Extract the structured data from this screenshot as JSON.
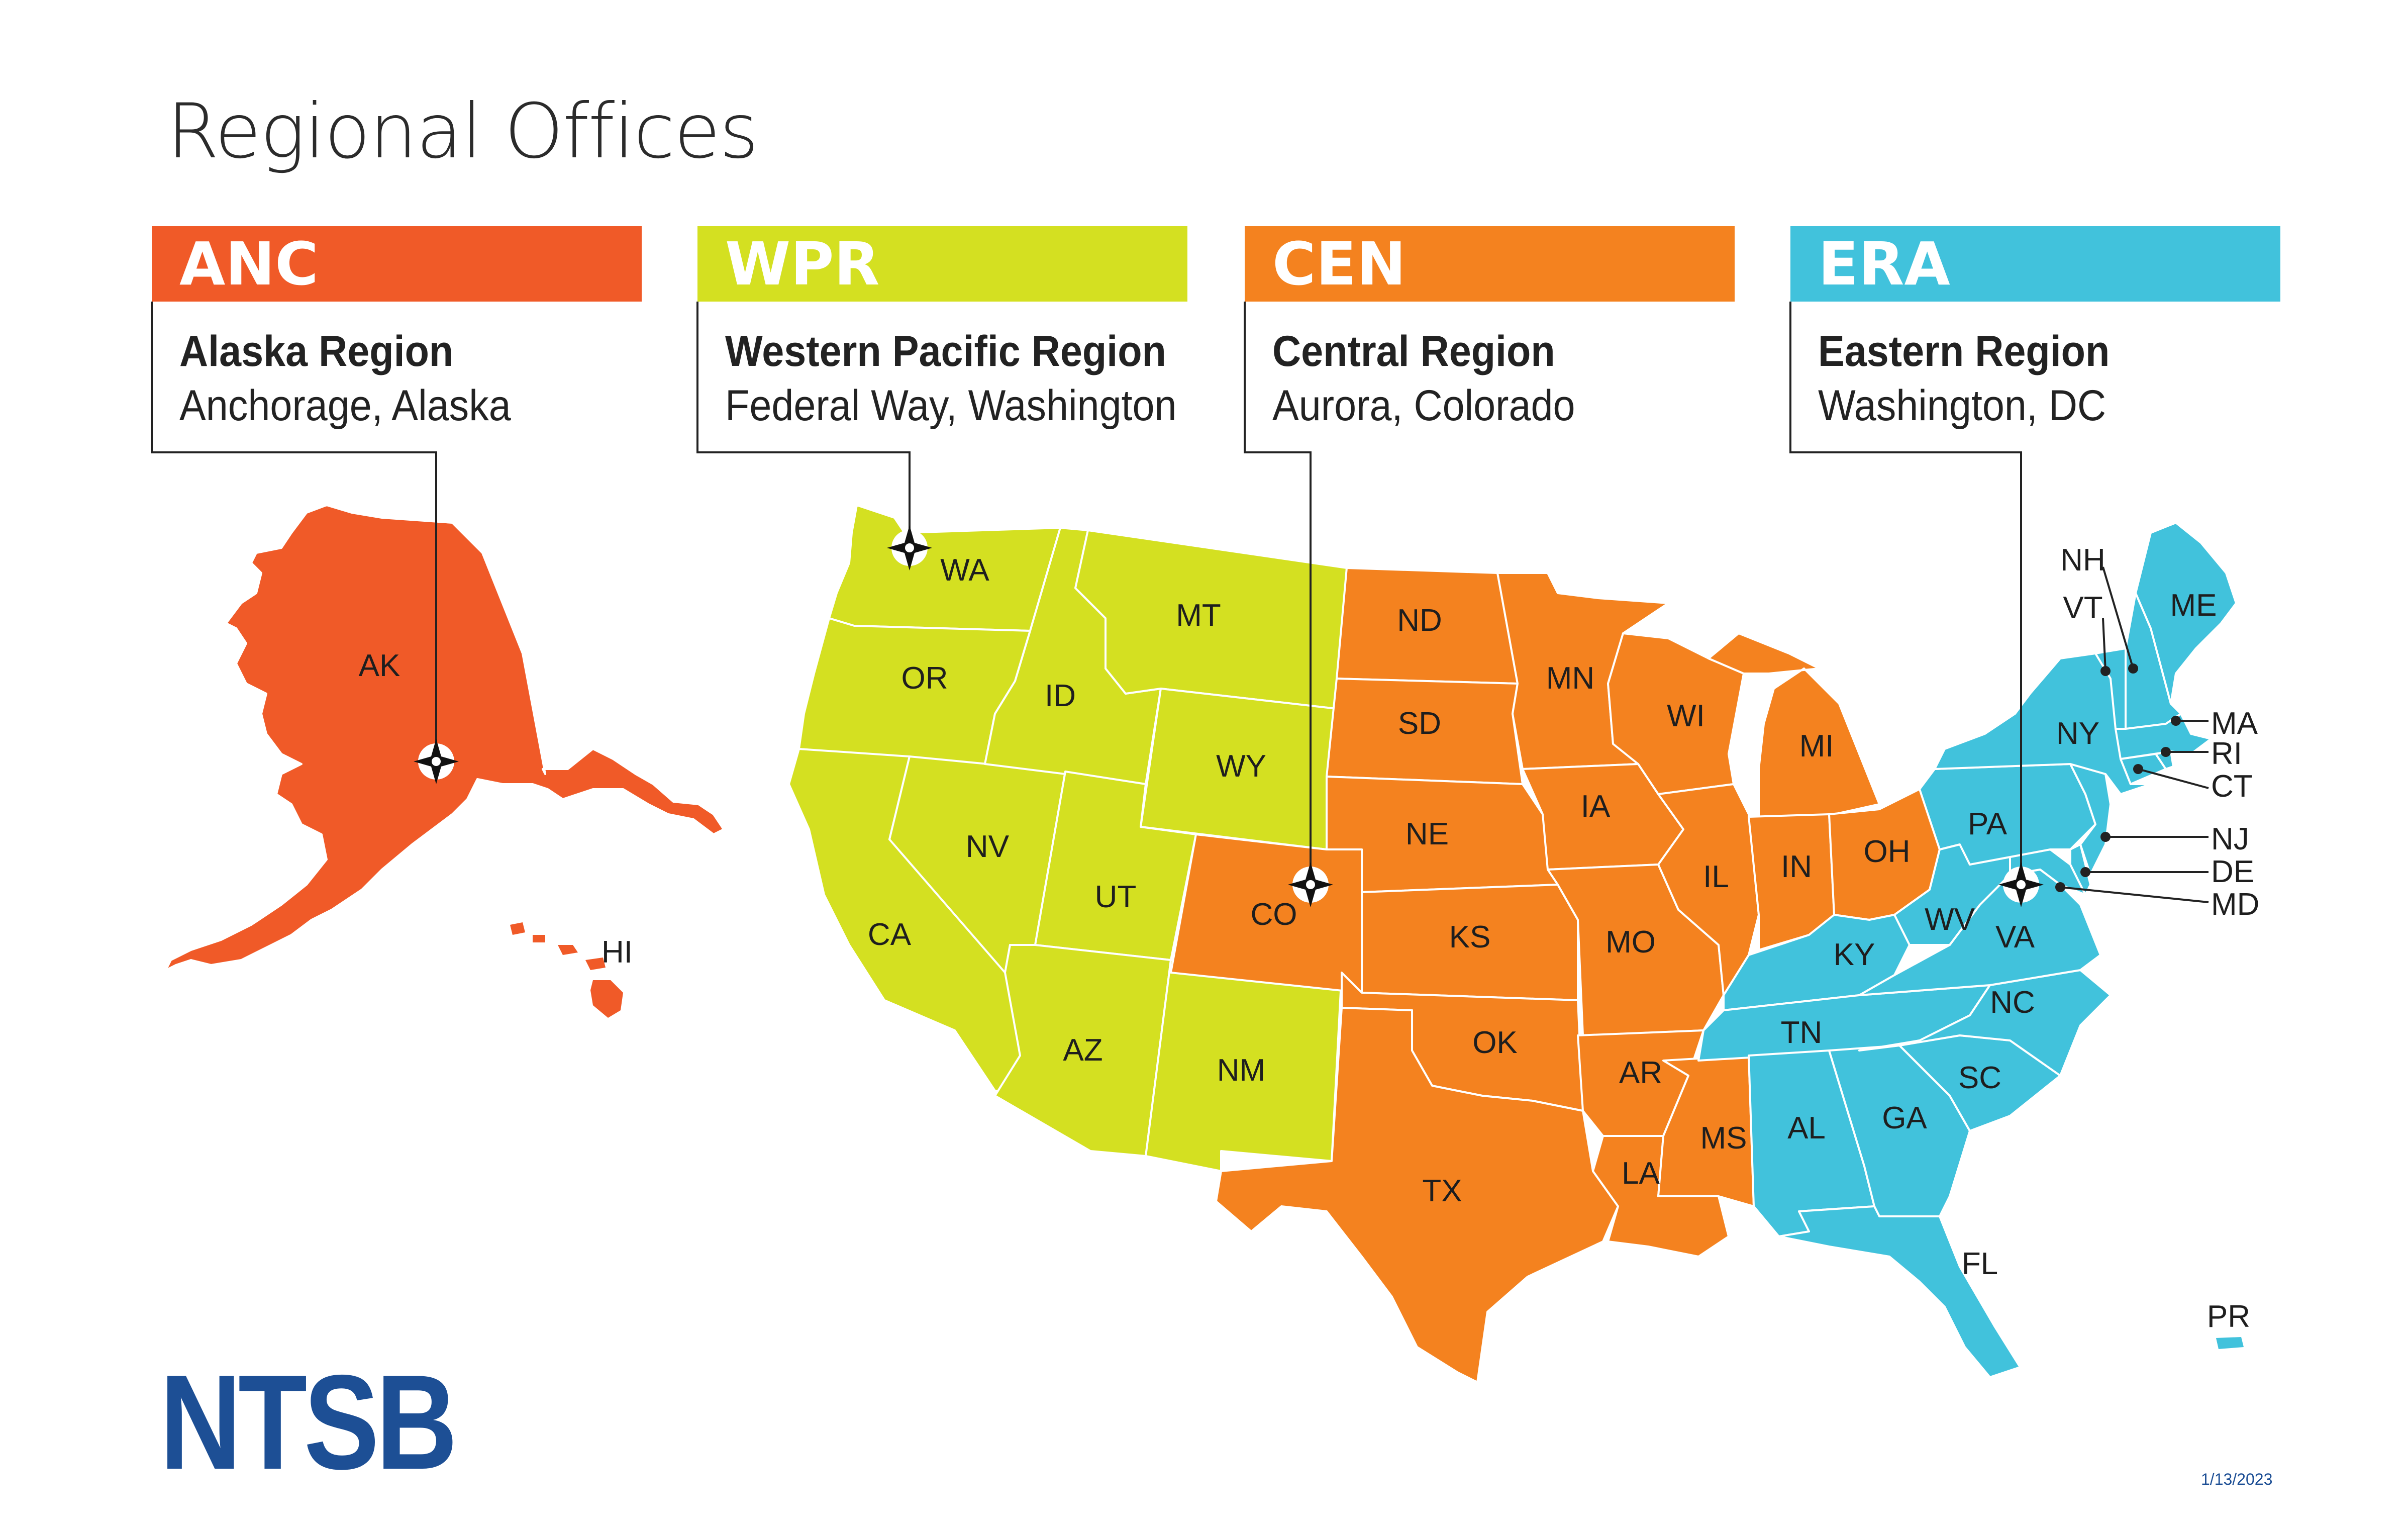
{
  "title": "Regional Offices",
  "colors": {
    "anc": "#f05a28",
    "wpr": "#d4e021",
    "cen": "#f4821f",
    "era": "#41c2dc",
    "logo": "#1d4f95"
  },
  "regions": [
    {
      "code": "ANC",
      "name": "Alaska Region",
      "city": "Anchorage, Alaska"
    },
    {
      "code": "WPR",
      "name": "Western Pacific Region",
      "city": "Federal Way, Washington"
    },
    {
      "code": "CEN",
      "name": "Central Region",
      "city": "Aurora, Colorado"
    },
    {
      "code": "ERA",
      "name": "Eastern Region",
      "city": "Washington, DC"
    }
  ],
  "states": {
    "AK": "AK",
    "HI": "HI",
    "WA": "WA",
    "OR": "OR",
    "CA": "CA",
    "ID": "ID",
    "NV": "NV",
    "MT": "MT",
    "WY": "WY",
    "UT": "UT",
    "AZ": "AZ",
    "NM": "NM",
    "ND": "ND",
    "SD": "SD",
    "NE": "NE",
    "CO": "CO",
    "KS": "KS",
    "OK": "OK",
    "TX": "TX",
    "MN": "MN",
    "IA": "IA",
    "MO": "MO",
    "AR": "AR",
    "LA": "LA",
    "WI": "WI",
    "IL": "IL",
    "MI": "MI",
    "IN": "IN",
    "OH": "OH",
    "MS": "MS",
    "KY": "KY",
    "TN": "TN",
    "AL": "AL",
    "GA": "GA",
    "FL": "FL",
    "SC": "SC",
    "NC": "NC",
    "VA": "VA",
    "WV": "WV",
    "PA": "PA",
    "NY": "NY",
    "VT": "VT",
    "NH": "NH",
    "ME": "ME",
    "MA": "MA",
    "RI": "RI",
    "CT": "CT",
    "NJ": "NJ",
    "DE": "DE",
    "MD": "MD",
    "PR": "PR"
  },
  "logo_text": "NTSB",
  "date": "1/13/2023"
}
